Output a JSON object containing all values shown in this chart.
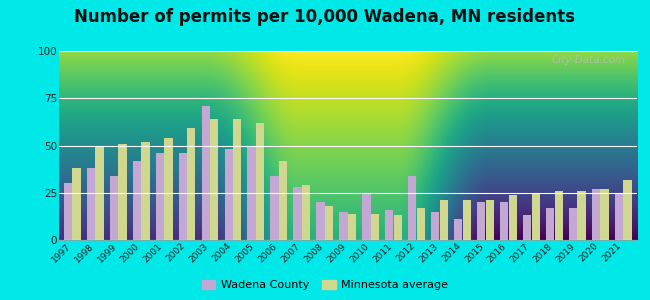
{
  "title": "Number of permits per 10,000 Wadena, MN residents",
  "years": [
    1997,
    1998,
    1999,
    2000,
    2001,
    2002,
    2003,
    2004,
    2005,
    2006,
    2007,
    2008,
    2009,
    2010,
    2011,
    2012,
    2013,
    2014,
    2015,
    2016,
    2017,
    2018,
    2019,
    2020,
    2021
  ],
  "wadena": [
    30,
    38,
    34,
    42,
    46,
    46,
    71,
    48,
    50,
    34,
    28,
    20,
    15,
    25,
    16,
    34,
    15,
    11,
    20,
    20,
    13,
    17,
    17,
    27,
    25
  ],
  "mn_avg": [
    38,
    50,
    51,
    52,
    54,
    59,
    64,
    64,
    62,
    42,
    29,
    18,
    14,
    14,
    13,
    17,
    21,
    21,
    21,
    24,
    25,
    26,
    26,
    27,
    32
  ],
  "wadena_color": "#c4a8d4",
  "mn_avg_color": "#d0d890",
  "outer_bg": "#00e8e8",
  "plot_bg_top": "#f5fff5",
  "plot_bg_bottom": "#c8e8c0",
  "ylim": [
    0,
    100
  ],
  "yticks": [
    0,
    25,
    50,
    75,
    100
  ],
  "title_fontsize": 12,
  "legend_label_wadena": "Wadena County",
  "legend_label_mn": "Minnesota average",
  "watermark": "City-Data.com"
}
